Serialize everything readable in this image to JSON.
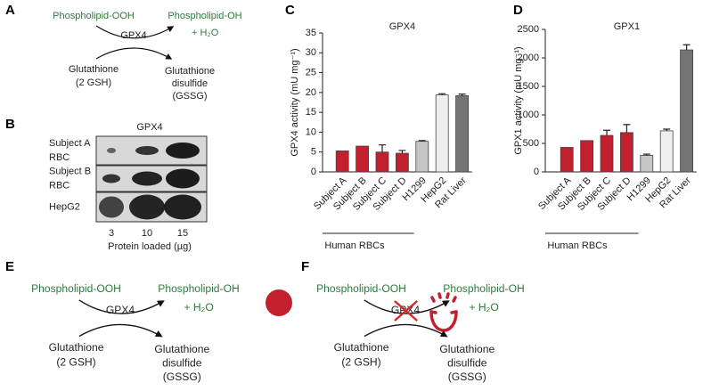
{
  "diagrams": {
    "A": {
      "panel_label": "A",
      "substrate": "Phospholipid-OOH",
      "product": "Phospholipid-OH",
      "water": "+ H₂O",
      "enzyme": "GPX4",
      "cosubstrate": [
        "Glutathione",
        "(2 GSH)"
      ],
      "coproduct": [
        "Glutathione",
        "disulfide",
        "(GSSG)"
      ]
    },
    "E": {
      "panel_label": "E",
      "substrate": "Phospholipid-OOH",
      "product": "Phospholipid-OH",
      "water": "+ H₂O",
      "enzyme": "GPX4",
      "cosubstrate": [
        "Glutathione",
        "(2 GSH)"
      ],
      "coproduct": [
        "Glutathione",
        "disulfide",
        "(GSSG)"
      ]
    },
    "F": {
      "panel_label": "F",
      "substrate": "Phospholipid-OOH",
      "product": "Phospholipid-OH",
      "water": "+ H₂O",
      "enzyme": "GPX4",
      "cosubstrate": [
        "Glutathione",
        "(2 GSH)"
      ],
      "coproduct": [
        "Glutathione",
        "disulfide",
        "(GSSG)"
      ]
    }
  },
  "blot": {
    "panel_label": "B",
    "title": "GPX4",
    "rows": [
      [
        "Subject A",
        "RBC"
      ],
      [
        "Subject B",
        "RBC"
      ],
      [
        "HepG2"
      ]
    ],
    "lanes": [
      "3",
      "10",
      "15"
    ],
    "xlabel": "Protein loaded (µg)"
  },
  "chart_data": [
    {
      "type": "bar",
      "panel_label": "C",
      "title": "GPX4",
      "ylabel": "GPX4 activity (mU mg⁻¹)",
      "categories": [
        "Subject A",
        "Subject B",
        "Subject C",
        "Subject D",
        "H1299",
        "HepG2",
        "Rat Liver"
      ],
      "values": [
        5.3,
        6.5,
        5.0,
        4.7,
        7.7,
        19.4,
        19.2
      ],
      "errors": [
        null,
        null,
        1.8,
        0.7,
        0.2,
        0.3,
        0.4
      ],
      "colors": [
        "#c3202f",
        "#c3202f",
        "#c3202f",
        "#c3202f",
        "#c6c6c6",
        "#eeeeee",
        "#737373"
      ],
      "group_label": "Human RBCs",
      "ylim": [
        0,
        35
      ],
      "yticks": [
        0,
        5,
        10,
        15,
        20,
        25,
        30,
        35
      ]
    },
    {
      "type": "bar",
      "panel_label": "D",
      "title": "GPX1",
      "ylabel": "GPX1 activity (mU mg⁻¹)",
      "categories": [
        "Subject A",
        "Subject B",
        "Subject C",
        "Subject D",
        "H1299",
        "HepG2",
        "Rat Liver"
      ],
      "values": [
        430,
        550,
        640,
        690,
        290,
        720,
        2140
      ],
      "errors": [
        null,
        null,
        90,
        140,
        20,
        30,
        90
      ],
      "colors": [
        "#c3202f",
        "#c3202f",
        "#c3202f",
        "#c3202f",
        "#c6c6c6",
        "#eeeeee",
        "#737373"
      ],
      "group_label": "Human RBCs",
      "ylim": [
        0,
        2500
      ],
      "yticks": [
        0,
        500,
        1000,
        1500,
        2000,
        2500
      ]
    }
  ]
}
